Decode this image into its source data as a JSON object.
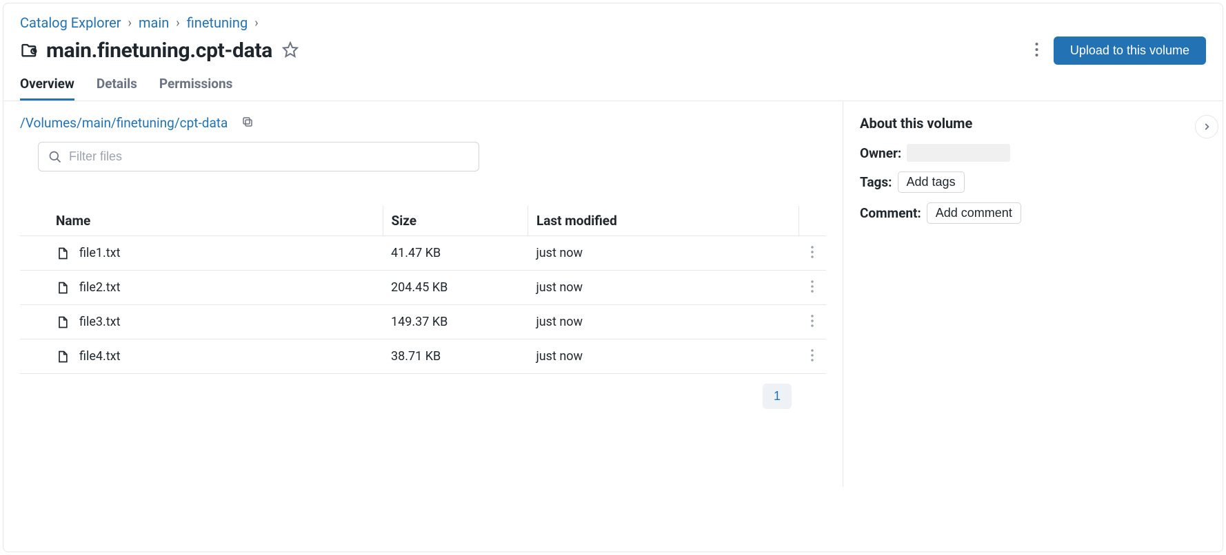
{
  "breadcrumb": {
    "items": [
      "Catalog Explorer",
      "main",
      "finetuning"
    ]
  },
  "header": {
    "title": "main.finetuning.cpt-data",
    "upload_button": "Upload to this volume"
  },
  "tabs": {
    "items": [
      {
        "label": "Overview",
        "active": true
      },
      {
        "label": "Details",
        "active": false
      },
      {
        "label": "Permissions",
        "active": false
      }
    ]
  },
  "path": {
    "value": "/Volumes/main/finetuning/cpt-data"
  },
  "filter": {
    "placeholder": "Filter files"
  },
  "table": {
    "columns": {
      "name": "Name",
      "size": "Size",
      "modified": "Last modified"
    },
    "rows": [
      {
        "name": "file1.txt",
        "size": "41.47 KB",
        "modified": "just now"
      },
      {
        "name": "file2.txt",
        "size": "204.45 KB",
        "modified": "just now"
      },
      {
        "name": "file3.txt",
        "size": "149.37 KB",
        "modified": "just now"
      },
      {
        "name": "file4.txt",
        "size": "38.71 KB",
        "modified": "just now"
      }
    ]
  },
  "pagination": {
    "current": "1"
  },
  "about": {
    "title": "About this volume",
    "owner_label": "Owner:",
    "owner_value": "",
    "tags_label": "Tags:",
    "add_tags": "Add tags",
    "comment_label": "Comment:",
    "add_comment": "Add comment"
  },
  "colors": {
    "link": "#2272b4",
    "primary_button": "#2272b4",
    "border": "#e5e7eb",
    "text": "#1f272d",
    "muted": "#6b7280"
  }
}
